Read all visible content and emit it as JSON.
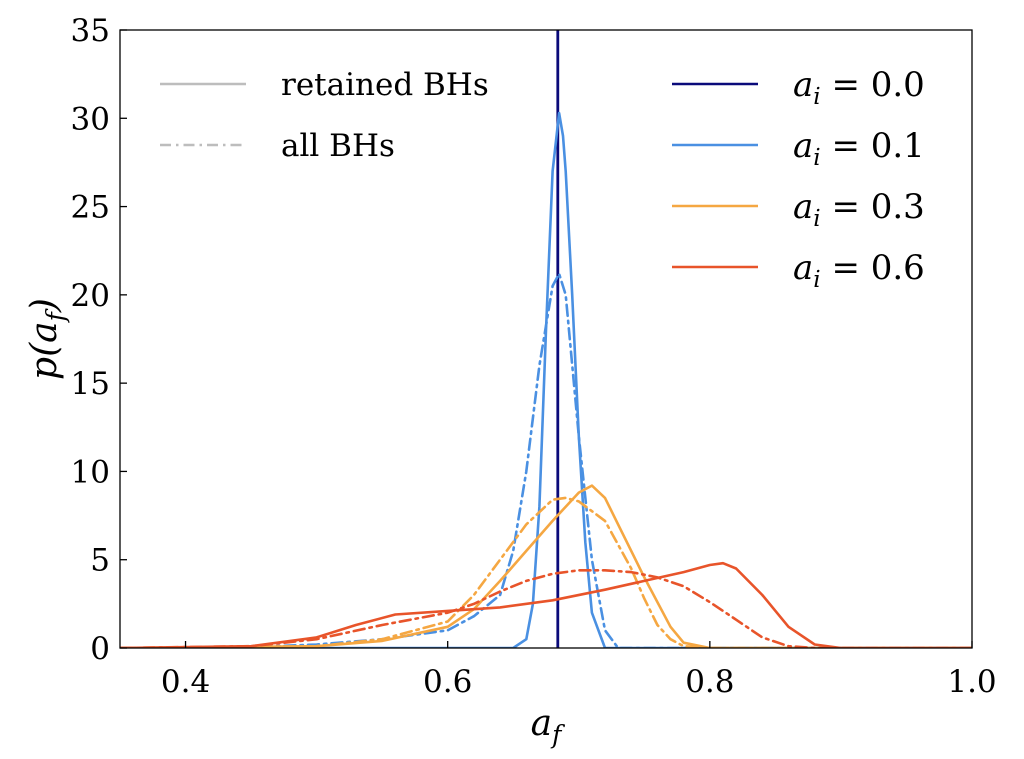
{
  "chart_data": {
    "type": "line",
    "xlabel": "a_f",
    "ylabel": "p(a_f)",
    "xlim": [
      0.35,
      1.0
    ],
    "ylim": [
      0,
      35
    ],
    "xticks": [
      0.4,
      0.6,
      0.8,
      1.0
    ],
    "xtick_labels": [
      "0.4",
      "0.6",
      "0.8",
      "1.0"
    ],
    "yticks": [
      0,
      5,
      10,
      15,
      20,
      25,
      30,
      35
    ],
    "ytick_labels": [
      "0",
      "5",
      "10",
      "15",
      "20",
      "25",
      "30",
      "35"
    ],
    "grid": false,
    "style_legend": {
      "placement": "top-left",
      "entries": [
        {
          "label": "retained BHs",
          "linestyle": "solid",
          "color": "#bdbdbd"
        },
        {
          "label": "all BHs",
          "linestyle": "dashdot",
          "color": "#bdbdbd"
        }
      ]
    },
    "series_legend": {
      "placement": "top-right",
      "entries": [
        {
          "var": "a",
          "sub": "i",
          "value": "0.0",
          "color": "#0a0a7a"
        },
        {
          "var": "a",
          "sub": "i",
          "value": "0.1",
          "color": "#4a90e2"
        },
        {
          "var": "a",
          "sub": "i",
          "value": "0.3",
          "color": "#f5a742"
        },
        {
          "var": "a",
          "sub": "i",
          "value": "0.6",
          "color": "#e8542a"
        }
      ]
    },
    "vertical_lines": [
      {
        "x": 0.684,
        "color": "#0a0a7a",
        "legend": "a_i = 0.0"
      }
    ],
    "series": [
      {
        "legend": "a_i = 0.1",
        "population": "retained BHs",
        "linestyle": "solid",
        "color": "#4a90e2",
        "x": [
          0.35,
          0.6,
          0.65,
          0.66,
          0.665,
          0.67,
          0.675,
          0.68,
          0.685,
          0.688,
          0.69,
          0.695,
          0.7,
          0.705,
          0.71,
          0.72,
          1.0
        ],
        "y": [
          0,
          0,
          0,
          0.5,
          2.5,
          8,
          18,
          27,
          30.3,
          29,
          27,
          20,
          12,
          6,
          2,
          0,
          0
        ]
      },
      {
        "legend": "a_i = 0.1",
        "population": "all BHs",
        "linestyle": "dashdot",
        "color": "#4a90e2",
        "x": [
          0.35,
          0.45,
          0.5,
          0.55,
          0.6,
          0.62,
          0.64,
          0.65,
          0.66,
          0.67,
          0.68,
          0.685,
          0.69,
          0.7,
          0.71,
          0.72,
          0.73,
          1.0
        ],
        "y": [
          0,
          0.05,
          0.2,
          0.5,
          1,
          1.8,
          3,
          5.5,
          10,
          16,
          20.5,
          21.2,
          20,
          12,
          5,
          1,
          0,
          0
        ]
      },
      {
        "legend": "a_i = 0.3",
        "population": "retained BHs",
        "linestyle": "solid",
        "color": "#f5a742",
        "x": [
          0.35,
          0.5,
          0.55,
          0.6,
          0.62,
          0.64,
          0.66,
          0.68,
          0.7,
          0.71,
          0.72,
          0.73,
          0.75,
          0.77,
          0.78,
          0.8,
          1.0
        ],
        "y": [
          0,
          0.1,
          0.4,
          1.2,
          2.2,
          3.8,
          5.5,
          7.2,
          8.8,
          9.2,
          8.5,
          7,
          4,
          1.2,
          0.3,
          0,
          0
        ]
      },
      {
        "legend": "a_i = 0.3",
        "population": "all BHs",
        "linestyle": "dashdot",
        "color": "#f5a742",
        "x": [
          0.35,
          0.5,
          0.55,
          0.6,
          0.62,
          0.64,
          0.66,
          0.68,
          0.69,
          0.7,
          0.72,
          0.74,
          0.75,
          0.76,
          0.77,
          0.78,
          0.8,
          1.0
        ],
        "y": [
          0,
          0.1,
          0.5,
          1.5,
          3,
          5,
          7,
          8.4,
          8.5,
          8.3,
          7.2,
          4.5,
          2.8,
          1.3,
          0.5,
          0.1,
          0,
          0
        ]
      },
      {
        "legend": "a_i = 0.6",
        "population": "retained BHs",
        "linestyle": "solid",
        "color": "#e8542a",
        "x": [
          0.35,
          0.45,
          0.5,
          0.53,
          0.56,
          0.6,
          0.64,
          0.68,
          0.72,
          0.75,
          0.78,
          0.8,
          0.81,
          0.82,
          0.84,
          0.86,
          0.88,
          0.9,
          1.0
        ],
        "y": [
          0,
          0.1,
          0.6,
          1.3,
          1.9,
          2.1,
          2.3,
          2.7,
          3.3,
          3.8,
          4.3,
          4.7,
          4.8,
          4.5,
          3,
          1.2,
          0.2,
          0,
          0
        ]
      },
      {
        "legend": "a_i = 0.6",
        "population": "all BHs",
        "linestyle": "dashdot",
        "color": "#e8542a",
        "x": [
          0.35,
          0.45,
          0.5,
          0.55,
          0.6,
          0.62,
          0.64,
          0.66,
          0.68,
          0.7,
          0.72,
          0.74,
          0.76,
          0.78,
          0.8,
          0.82,
          0.84,
          0.86,
          0.88,
          1.0
        ],
        "y": [
          0,
          0.1,
          0.5,
          1.3,
          2.0,
          2.5,
          3.2,
          3.8,
          4.2,
          4.4,
          4.4,
          4.3,
          4.0,
          3.5,
          2.6,
          1.6,
          0.6,
          0.1,
          0,
          0
        ]
      }
    ]
  }
}
